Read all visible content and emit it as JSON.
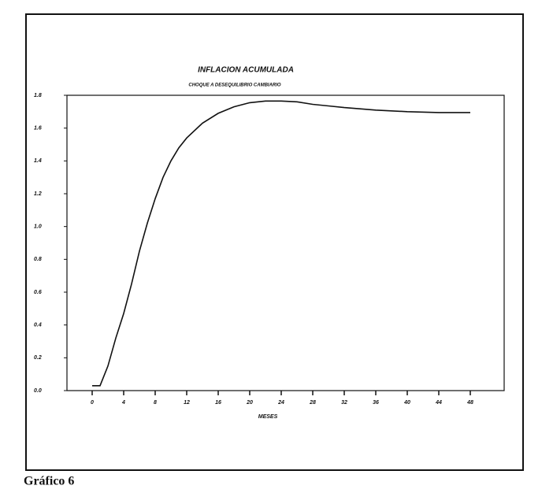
{
  "chart_data": {
    "type": "line",
    "title": "INFLACION ACUMULADA",
    "subtitle": "CHOQUE A DESEQUILIBRIO CAMBIARIO",
    "xlabel": "MESES",
    "caption": "Gráfico 6",
    "x": [
      0,
      1,
      2,
      3,
      4,
      5,
      6,
      7,
      8,
      9,
      10,
      11,
      12,
      14,
      16,
      18,
      20,
      22,
      24,
      26,
      28,
      30,
      32,
      36,
      40,
      44,
      48
    ],
    "values": [
      0.03,
      0.03,
      0.15,
      0.32,
      0.47,
      0.65,
      0.85,
      1.02,
      1.17,
      1.3,
      1.4,
      1.48,
      1.54,
      1.63,
      1.69,
      1.73,
      1.755,
      1.765,
      1.765,
      1.76,
      1.745,
      1.735,
      1.725,
      1.71,
      1.7,
      1.695,
      1.695
    ],
    "color": "#111111",
    "xlim": [
      -3.2,
      52.3
    ],
    "ylim": [
      0,
      1.8
    ],
    "xticks": [
      0,
      4,
      8,
      12,
      16,
      20,
      24,
      28,
      32,
      36,
      40,
      44,
      48
    ],
    "yticks": [
      {
        "value": 0,
        "label": "0.0"
      },
      0.2,
      0.4,
      0.6,
      0.8,
      {
        "value": 1,
        "label": "1.0"
      },
      1.2,
      1.4,
      1.6,
      1.8
    ],
    "grid": false
  }
}
